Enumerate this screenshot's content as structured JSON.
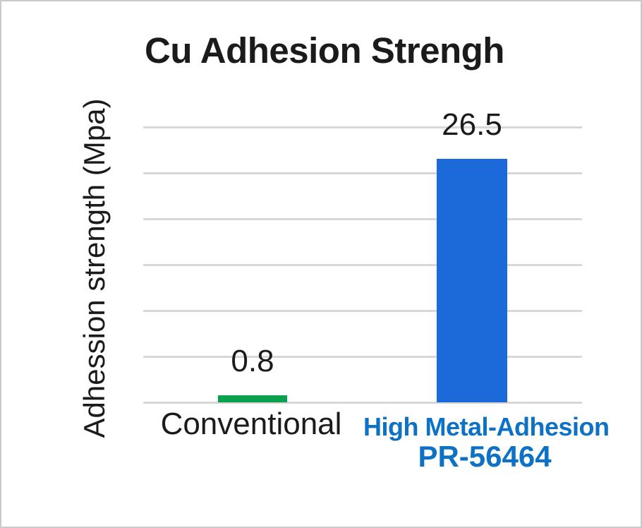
{
  "chart_data": {
    "type": "bar",
    "title": "Cu Adhesion Strengh",
    "ylabel": "Adhession strength (Mpa)",
    "xlabel": "",
    "categories": [
      "Conventional",
      "High Metal-Adhesion PR-56464"
    ],
    "values": [
      0.8,
      26.5
    ],
    "data_labels": [
      "0.8",
      "26.5"
    ],
    "bar_colors": [
      "#09a04e",
      "#1c69da"
    ],
    "ylim": [
      0,
      30
    ],
    "y_gridline_step": 5,
    "y_tick_labels_visible": false,
    "grid": "horizontal",
    "legend": "none"
  },
  "labels": {
    "title": "Cu Adhesion Strengh",
    "y_axis": "Adhession strength (Mpa)",
    "value_conventional": "0.8",
    "value_pr": "26.5",
    "category_conventional": "Conventional",
    "category_pr_line1": "High Metal-Adhesion",
    "category_pr_line2": "PR-56464"
  },
  "colors": {
    "bar_green": "#09a04e",
    "bar_blue": "#1c69da",
    "category_blue_text": "#0d72c6",
    "text_black": "#1b1b1b",
    "gridline_gray": "#d8d8d8",
    "frame_border": "#c9cacd",
    "background": "#ffffff"
  }
}
